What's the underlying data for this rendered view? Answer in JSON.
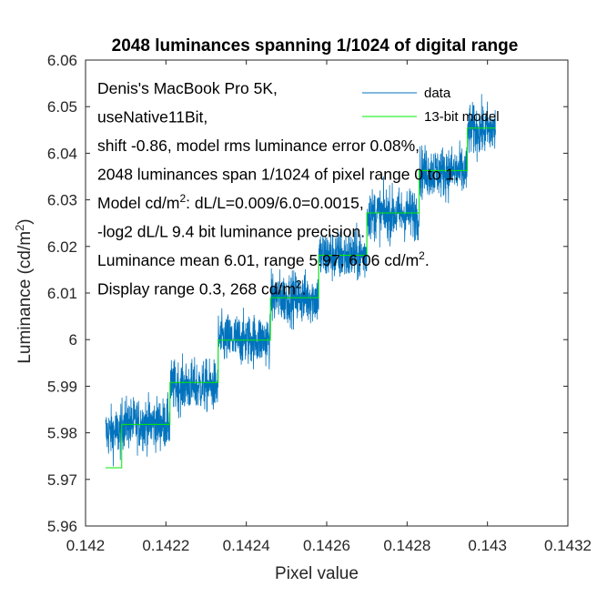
{
  "chart_data": {
    "type": "line",
    "title": "2048 luminances spanning 1/1024 of digital range",
    "xlabel": "Pixel value",
    "ylabel_base": "Luminance (cd/m",
    "ylabel_sup": "2",
    "ylabel_end": ")",
    "xlim": [
      0.142,
      0.1432
    ],
    "ylim": [
      5.96,
      6.06
    ],
    "xticks": [
      0.142,
      0.1422,
      0.1424,
      0.1426,
      0.1428,
      0.143,
      0.1432
    ],
    "xtick_labels": [
      "0.142",
      "0.1422",
      "0.1424",
      "0.1426",
      "0.1428",
      "0.143",
      "0.1432"
    ],
    "yticks": [
      5.96,
      5.97,
      5.98,
      5.99,
      6,
      6.01,
      6.02,
      6.03,
      6.04,
      6.05,
      6.06
    ],
    "ytick_labels": [
      "5.96",
      "5.97",
      "5.98",
      "5.99",
      "6",
      "6.01",
      "6.02",
      "6.03",
      "6.04",
      "6.05",
      "6.06"
    ],
    "grid": false,
    "legend_position": "top-right",
    "series": [
      {
        "name": "data",
        "color": "#0072bd",
        "x_range": [
          0.14205,
          0.14302
        ],
        "noise_amplitude": 0.0045,
        "segments": [
          {
            "x0": 0.14205,
            "x1": 0.14209,
            "mean": 5.98
          },
          {
            "x0": 0.14209,
            "x1": 0.14221,
            "mean": 5.982
          },
          {
            "x0": 0.14221,
            "x1": 0.14233,
            "mean": 5.99
          },
          {
            "x0": 0.14233,
            "x1": 0.14246,
            "mean": 6.0
          },
          {
            "x0": 0.14246,
            "x1": 0.14258,
            "mean": 6.009
          },
          {
            "x0": 0.14258,
            "x1": 0.1427,
            "mean": 6.018
          },
          {
            "x0": 0.1427,
            "x1": 0.14283,
            "mean": 6.027
          },
          {
            "x0": 0.14283,
            "x1": 0.14295,
            "mean": 6.036
          },
          {
            "x0": 0.14295,
            "x1": 0.14302,
            "mean": 6.045
          }
        ]
      },
      {
        "name": "13-bit model",
        "color": "#00ee00",
        "steps": [
          {
            "x0": 0.14205,
            "x1": 0.14209,
            "y": 5.9725
          },
          {
            "x0": 0.14209,
            "x1": 0.14221,
            "y": 5.9818
          },
          {
            "x0": 0.14221,
            "x1": 0.14233,
            "y": 5.9908
          },
          {
            "x0": 0.14233,
            "x1": 0.14246,
            "y": 5.9999
          },
          {
            "x0": 0.14246,
            "x1": 0.14258,
            "y": 6.009
          },
          {
            "x0": 0.14258,
            "x1": 0.1427,
            "y": 6.0181
          },
          {
            "x0": 0.1427,
            "x1": 0.14283,
            "y": 6.0272
          },
          {
            "x0": 0.14283,
            "x1": 0.14295,
            "y": 6.0363
          },
          {
            "x0": 0.14295,
            "x1": 0.14302,
            "y": 6.0454
          }
        ]
      }
    ],
    "annotations": [
      {
        "text": "Denis's MacBook Pro 5K,",
        "sup": "",
        "after": ""
      },
      {
        "text": "useNative11Bit,",
        "sup": "",
        "after": ""
      },
      {
        "text": "shift -0.86, model rms luminance error 0.08%,",
        "sup": "",
        "after": ""
      },
      {
        "text": "2048 luminances span 1/1024 of pixel range 0 to 1.",
        "sup": "",
        "after": ""
      },
      {
        "text": "Model cd/m",
        "sup": "2",
        "after": ": dL/L=0.009/6.0=0.0015,"
      },
      {
        "text": "-log2 dL/L 9.4 bit luminance precision.",
        "sup": "",
        "after": ""
      },
      {
        "text": "Luminance mean 6.01, range 5.97, 6.06 cd/m",
        "sup": "2",
        "after": "."
      },
      {
        "text": "Display range 0.3, 268 cd/m",
        "sup": "2",
        "after": "."
      }
    ]
  }
}
